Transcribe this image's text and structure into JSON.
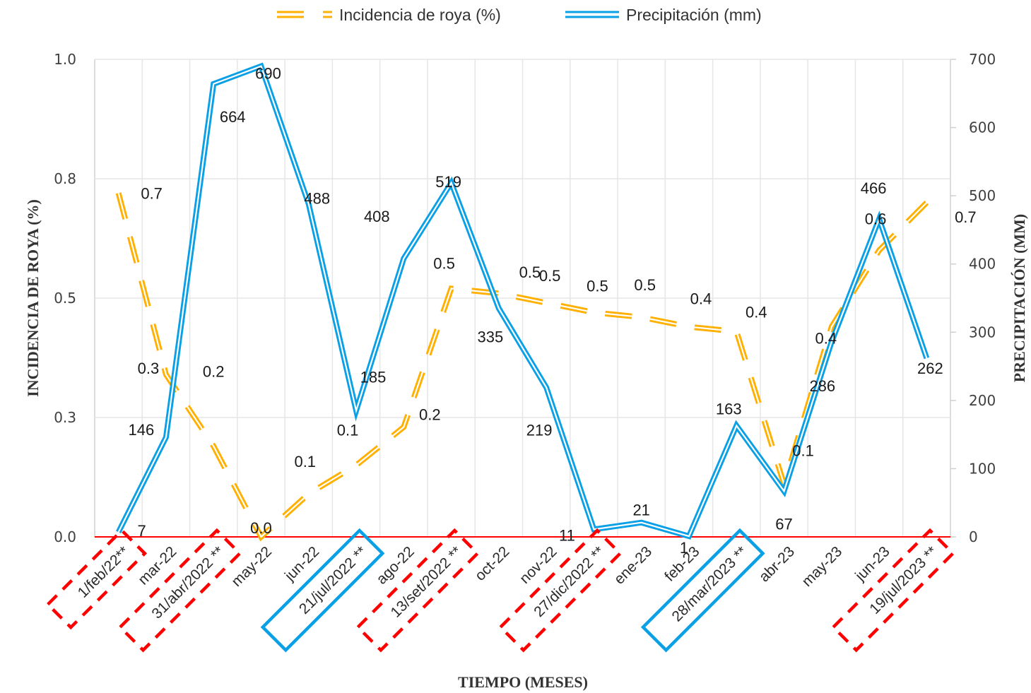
{
  "chart_data": {
    "type": "line",
    "title": "",
    "categories": [
      "1/feb/22**",
      "mar-22",
      "31/abr/2022 **",
      "may-22",
      "jun-22",
      "21/jul/2022 **",
      "ago-22",
      "13/set/2022 **",
      "oct-22",
      "nov-22",
      "27/dic/2022 **",
      "ene-23",
      "feb-23",
      "28/mar/2023 **",
      "abr-23",
      "may-23",
      "jun-23",
      "19/jul/2023 **"
    ],
    "highlighted_categories": [
      {
        "label": "1/feb/22**",
        "style": "red-dashed"
      },
      {
        "label": "31/abr/2022 **",
        "style": "red-dashed"
      },
      {
        "label": "21/jul/2022 **",
        "style": "blue-solid"
      },
      {
        "label": "13/set/2022 **",
        "style": "red-dashed"
      },
      {
        "label": "27/dic/2022 **",
        "style": "red-dashed"
      },
      {
        "label": "28/mar/2023 **",
        "style": "blue-solid"
      },
      {
        "label": "19/jul/2023 **",
        "style": "red-dashed"
      }
    ],
    "series": [
      {
        "name": "Incidencia de roya (%)",
        "axis": "left",
        "style": "double-dashed",
        "color": "#FFB000",
        "values": [
          0.72,
          0.34,
          0.19,
          0.0,
          0.09,
          0.15,
          0.23,
          0.52,
          0.51,
          0.49,
          0.47,
          0.46,
          0.44,
          0.43,
          0.11,
          0.44,
          0.6,
          0.7
        ],
        "labels": [
          "0.7",
          "0.3",
          "0.2",
          "0.0",
          "0.1",
          "0.1",
          "0.2",
          "0.5",
          "0.5",
          "0.5",
          "0.5",
          "0.5",
          "0.4",
          "0.4",
          "0.1",
          "0.4",
          "0.6",
          "0.7"
        ]
      },
      {
        "name": "Precipitación (mm)",
        "axis": "right",
        "style": "double-solid",
        "color": "#0AA0E6",
        "values": [
          7,
          146,
          664,
          690,
          488,
          185,
          408,
          519,
          335,
          219,
          11,
          21,
          1,
          163,
          67,
          286,
          466,
          262
        ],
        "labels": [
          "7",
          "146",
          "664",
          "690",
          "488",
          "185",
          "408",
          "519",
          "335",
          "219",
          "11",
          "21",
          "1",
          "163",
          "67",
          "286",
          "466",
          "262"
        ]
      }
    ],
    "xlabel": "TIEMPO (MESES)",
    "ylabel": "INCIDENCIA DE ROYA (%)",
    "y2label": "PRECIPITACIÓN (MM)",
    "ylim": [
      0,
      1.0
    ],
    "y2lim": [
      0,
      700
    ],
    "yticks": [
      0.0,
      0.25,
      0.5,
      0.75,
      1.0
    ],
    "ytick_labels": [
      "0.0",
      "0.3",
      "0.5",
      "0.8",
      "1.0"
    ],
    "y2ticks": [
      0,
      100,
      200,
      300,
      400,
      500,
      600,
      700
    ],
    "y2tick_labels": [
      "0",
      "100",
      "200",
      "300",
      "400",
      "500",
      "600",
      "700"
    ],
    "grid": true,
    "legend": {
      "position": "top-center",
      "entries": [
        "Incidencia de roya (%)",
        "Precipitación (mm)"
      ]
    },
    "baseline_color": "#FF0000"
  }
}
